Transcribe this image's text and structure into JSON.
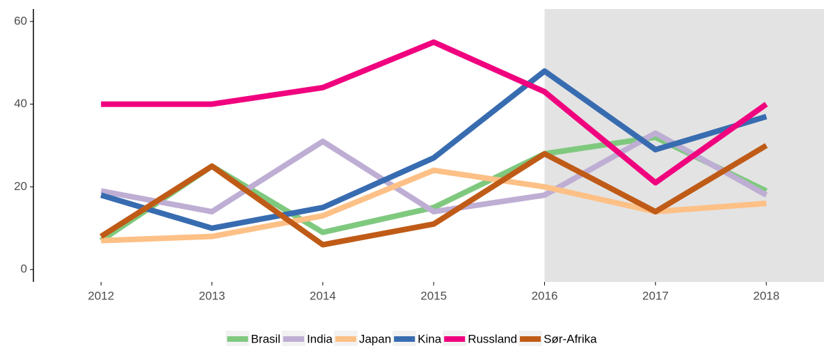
{
  "chart_data": {
    "type": "line",
    "x": [
      2012,
      2013,
      2014,
      2015,
      2016,
      2017,
      2018
    ],
    "series": [
      {
        "name": "Brasil",
        "color": "#7fc97f",
        "values": [
          7,
          25,
          9,
          15,
          28,
          32,
          19
        ]
      },
      {
        "name": "India",
        "color": "#beaed4",
        "values": [
          19,
          14,
          31,
          14,
          18,
          33,
          18
        ]
      },
      {
        "name": "Japan",
        "color": "#fdc086",
        "values": [
          7,
          8,
          13,
          24,
          20,
          14,
          16
        ]
      },
      {
        "name": "Kina",
        "color": "#386cb0",
        "values": [
          18,
          10,
          15,
          27,
          48,
          29,
          37
        ]
      },
      {
        "name": "Russland",
        "color": "#f0027f",
        "values": [
          40,
          40,
          44,
          55,
          43,
          21,
          40
        ]
      },
      {
        "name": "Sør-Afrika",
        "color": "#bf5b17",
        "values": [
          8,
          25,
          6,
          11,
          28,
          14,
          30
        ]
      }
    ],
    "xlim": [
      2011.39,
      2018.52
    ],
    "xticks": [
      2012,
      2013,
      2014,
      2015,
      2016,
      2017,
      2018
    ],
    "ylim": [
      -3,
      63
    ],
    "yticks": [
      0,
      20,
      40,
      60
    ],
    "highlight_start": 2016,
    "highlight_color": "#e3e3e3",
    "legend": "bottom"
  }
}
